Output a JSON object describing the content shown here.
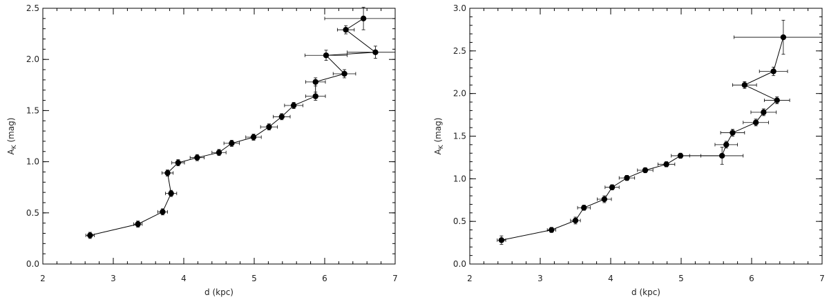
{
  "chart_data": [
    {
      "type": "scatter",
      "xlabel": "d (kpc)",
      "ylabel": "A_K (mag)",
      "ylabel_main": "A",
      "ylabel_sub": "K",
      "ylabel_unit": " (mag)",
      "xlim": [
        2,
        7
      ],
      "ylim": [
        0,
        2.5
      ],
      "x_ticks": [
        "2",
        "3",
        "4",
        "5",
        "6",
        "7"
      ],
      "y_ticks": [
        "0.0",
        "0.5",
        "1.0",
        "1.5",
        "2.0",
        "2.5"
      ],
      "grid": false,
      "series": [
        {
          "points": [
            {
              "x": 2.67,
              "y": 0.28,
              "xerr": 0.06,
              "yerr": 0.03
            },
            {
              "x": 3.35,
              "y": 0.39,
              "xerr": 0.06,
              "yerr": 0.03
            },
            {
              "x": 3.7,
              "y": 0.51,
              "xerr": 0.07,
              "yerr": 0.03
            },
            {
              "x": 3.82,
              "y": 0.69,
              "xerr": 0.08,
              "yerr": 0.03
            },
            {
              "x": 3.77,
              "y": 0.89,
              "xerr": 0.08,
              "yerr": 0.03
            },
            {
              "x": 3.92,
              "y": 0.99,
              "xerr": 0.09,
              "yerr": 0.03
            },
            {
              "x": 4.19,
              "y": 1.04,
              "xerr": 0.1,
              "yerr": 0.03
            },
            {
              "x": 4.5,
              "y": 1.09,
              "xerr": 0.1,
              "yerr": 0.03
            },
            {
              "x": 4.68,
              "y": 1.18,
              "xerr": 0.11,
              "yerr": 0.03
            },
            {
              "x": 4.99,
              "y": 1.24,
              "xerr": 0.11,
              "yerr": 0.03
            },
            {
              "x": 5.21,
              "y": 1.34,
              "xerr": 0.12,
              "yerr": 0.03
            },
            {
              "x": 5.39,
              "y": 1.44,
              "xerr": 0.12,
              "yerr": 0.03
            },
            {
              "x": 5.56,
              "y": 1.55,
              "xerr": 0.13,
              "yerr": 0.03
            },
            {
              "x": 5.87,
              "y": 1.64,
              "xerr": 0.14,
              "yerr": 0.04
            },
            {
              "x": 5.87,
              "y": 1.78,
              "xerr": 0.14,
              "yerr": 0.04
            },
            {
              "x": 6.28,
              "y": 1.86,
              "xerr": 0.16,
              "yerr": 0.04
            },
            {
              "x": 6.02,
              "y": 2.04,
              "xerr": 0.3,
              "yerr": 0.05
            },
            {
              "x": 6.72,
              "y": 2.07,
              "xerr": 0.4,
              "yerr": 0.06
            },
            {
              "x": 6.3,
              "y": 2.29,
              "xerr": 0.12,
              "yerr": 0.04
            },
            {
              "x": 6.55,
              "y": 2.4,
              "xerr": 0.55,
              "yerr": 0.11
            }
          ]
        }
      ]
    },
    {
      "type": "scatter",
      "xlabel": "d (kpc)",
      "ylabel": "A_K (mag)",
      "ylabel_main": "A",
      "ylabel_sub": "K",
      "ylabel_unit": " (mag)",
      "xlim": [
        2,
        7
      ],
      "ylim": [
        0,
        3.0
      ],
      "x_ticks": [
        "2",
        "3",
        "4",
        "5",
        "6",
        "7"
      ],
      "y_ticks": [
        "0.0",
        "0.5",
        "1.0",
        "1.5",
        "2.0",
        "2.5",
        "3.0"
      ],
      "grid": false,
      "series": [
        {
          "points": [
            {
              "x": 2.45,
              "y": 0.28,
              "xerr": 0.06,
              "yerr": 0.05
            },
            {
              "x": 3.16,
              "y": 0.4,
              "xerr": 0.06,
              "yerr": 0.03
            },
            {
              "x": 3.5,
              "y": 0.51,
              "xerr": 0.07,
              "yerr": 0.04
            },
            {
              "x": 3.62,
              "y": 0.66,
              "xerr": 0.09,
              "yerr": 0.03
            },
            {
              "x": 3.91,
              "y": 0.76,
              "xerr": 0.1,
              "yerr": 0.04
            },
            {
              "x": 4.02,
              "y": 0.9,
              "xerr": 0.1,
              "yerr": 0.03
            },
            {
              "x": 4.23,
              "y": 1.01,
              "xerr": 0.11,
              "yerr": 0.03
            },
            {
              "x": 4.49,
              "y": 1.1,
              "xerr": 0.11,
              "yerr": 0.03
            },
            {
              "x": 4.79,
              "y": 1.17,
              "xerr": 0.12,
              "yerr": 0.03
            },
            {
              "x": 4.99,
              "y": 1.27,
              "xerr": 0.13,
              "yerr": 0.03
            },
            {
              "x": 5.58,
              "y": 1.27,
              "xerr": 0.3,
              "yerr": 0.1
            },
            {
              "x": 5.64,
              "y": 1.4,
              "xerr": 0.16,
              "yerr": 0.04
            },
            {
              "x": 5.73,
              "y": 1.54,
              "xerr": 0.17,
              "yerr": 0.04
            },
            {
              "x": 6.06,
              "y": 1.66,
              "xerr": 0.18,
              "yerr": 0.04
            },
            {
              "x": 6.17,
              "y": 1.78,
              "xerr": 0.18,
              "yerr": 0.04
            },
            {
              "x": 6.36,
              "y": 1.92,
              "xerr": 0.18,
              "yerr": 0.04
            },
            {
              "x": 5.9,
              "y": 2.1,
              "xerr": 0.17,
              "yerr": 0.04
            },
            {
              "x": 6.31,
              "y": 2.26,
              "xerr": 0.2,
              "yerr": 0.05
            },
            {
              "x": 6.45,
              "y": 2.66,
              "xerr": 0.7,
              "yerr": 0.2
            }
          ]
        }
      ]
    }
  ]
}
